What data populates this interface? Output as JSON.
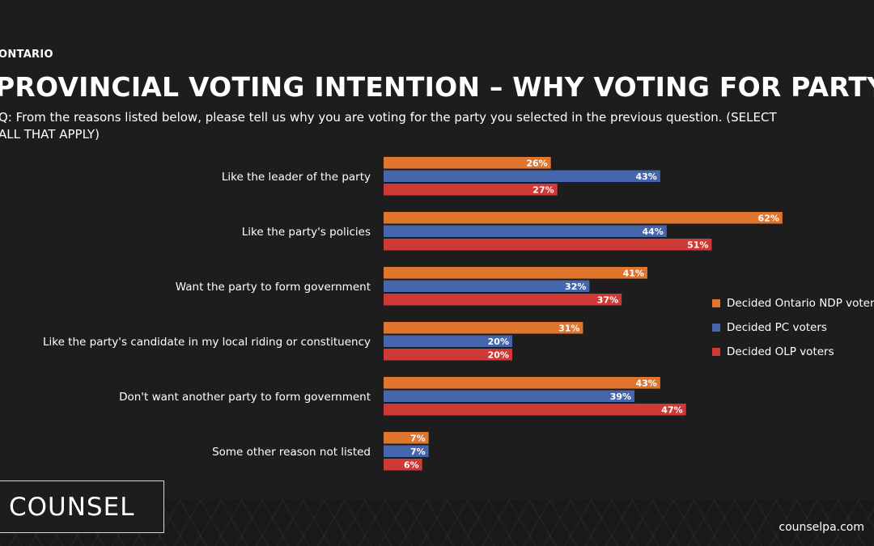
{
  "header": {
    "region": "ONTARIO",
    "title": "PROVINCIAL VOTING INTENTION – WHY VOTING FOR PARTY",
    "question": "Q: From the reasons listed below, please tell us why you are voting for the party you selected in the previous question. (SELECT ALL THAT APPLY)"
  },
  "chart_data": {
    "type": "bar",
    "orientation": "horizontal",
    "categories": [
      "Like the leader of the party",
      "Like the party's policies",
      "Want the party to form government",
      "Like the party's candidate in my local riding or constituency",
      "Don't want another party to form government",
      "Some other reason not listed"
    ],
    "series": [
      {
        "name": "Decided Ontario NDP voters",
        "color": "#e0752d",
        "values": [
          26,
          62,
          41,
          31,
          43,
          7
        ]
      },
      {
        "name": "Decided PC voters",
        "color": "#4565ad",
        "values": [
          43,
          44,
          32,
          20,
          39,
          7
        ]
      },
      {
        "name": "Decided OLP voters",
        "color": "#cf3a36",
        "values": [
          27,
          51,
          37,
          20,
          47,
          6
        ]
      }
    ],
    "value_suffix": "%",
    "xlim": [
      0,
      100
    ],
    "grid": false,
    "legend_position": "right"
  },
  "branding": {
    "logo_text": "COUNSEL",
    "website": "counselpa.com"
  }
}
